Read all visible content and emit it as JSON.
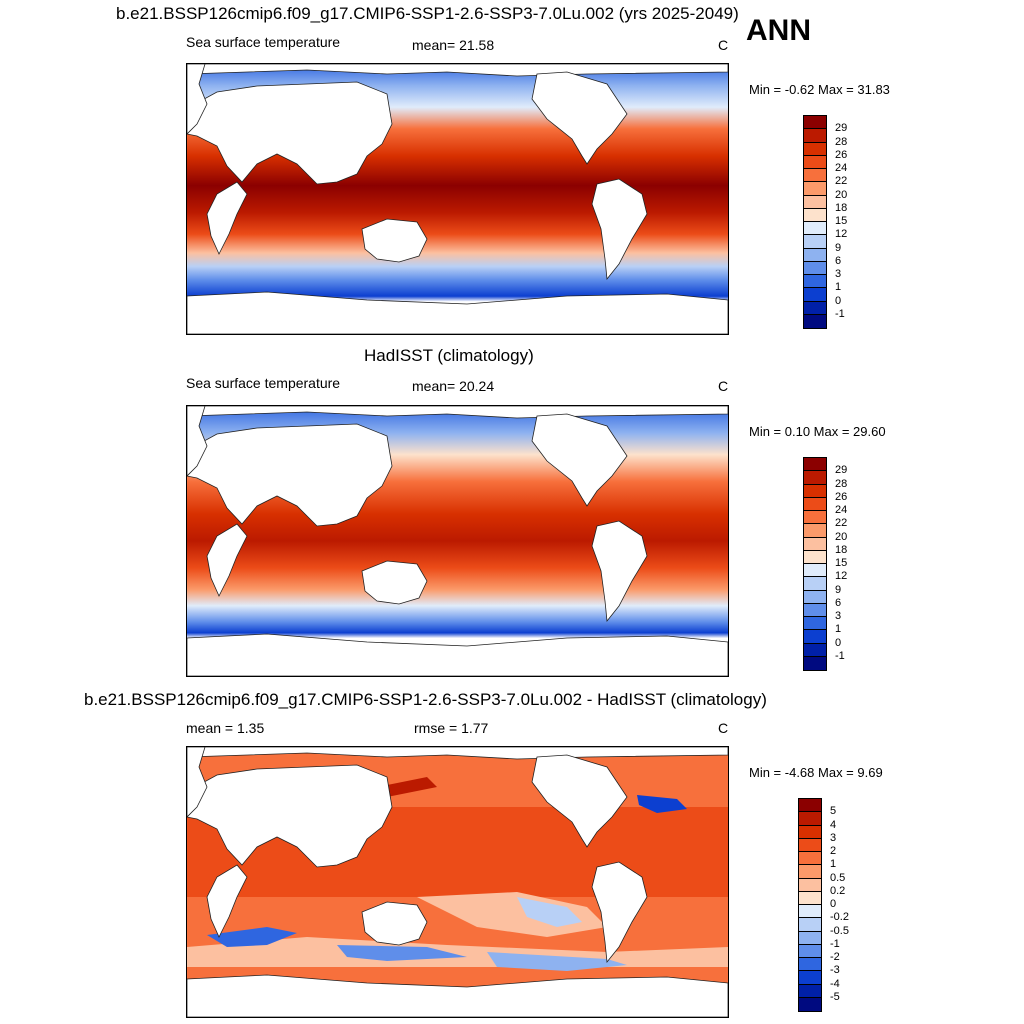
{
  "panels": [
    {
      "title": "b.e21.BSSP126cmip6.f09_g17.CMIP6-SSP1-2.6-SSP3-7.0Lu.002 (yrs 2025-2049)",
      "left_label": "Sea surface temperature",
      "center_label": "mean=  21.58",
      "units": "C",
      "minmax": "Min =  -0.62 Max =  31.83",
      "colorbar_labels": [
        "29",
        "28",
        "26",
        "24",
        "22",
        "20",
        "18",
        "15",
        "12",
        "9",
        "6",
        "3",
        "1",
        "0",
        "-1"
      ],
      "colorbar_colors": [
        "#8b0000",
        "#bb1a00",
        "#d83000",
        "#ec4c18",
        "#f7703c",
        "#fb9a6a",
        "#fcc0a0",
        "#fde2cc",
        "#e0ecfb",
        "#b8d0f6",
        "#8eb2f0",
        "#5f8eea",
        "#2f66e0",
        "#0c3fd0",
        "#0020a8",
        "#000a80"
      ]
    },
    {
      "title": "HadISST (climatology)",
      "left_label": "Sea surface temperature",
      "center_label": "mean=  20.24",
      "units": "C",
      "minmax": "Min =   0.10 Max =  29.60",
      "colorbar_labels": [
        "29",
        "28",
        "26",
        "24",
        "22",
        "20",
        "18",
        "15",
        "12",
        "9",
        "6",
        "3",
        "1",
        "0",
        "-1"
      ],
      "colorbar_colors": [
        "#8b0000",
        "#bb1a00",
        "#d83000",
        "#ec4c18",
        "#f7703c",
        "#fb9a6a",
        "#fcc0a0",
        "#fde2cc",
        "#e0ecfb",
        "#b8d0f6",
        "#8eb2f0",
        "#5f8eea",
        "#2f66e0",
        "#0c3fd0",
        "#0020a8",
        "#000a80"
      ]
    },
    {
      "title": "b.e21.BSSP126cmip6.f09_g17.CMIP6-SSP1-2.6-SSP3-7.0Lu.002 - HadISST (climatology)",
      "left_label": "mean =   1.35",
      "center_label": "rmse =   1.77",
      "units": "C",
      "minmax": "Min =  -4.68 Max =   9.69",
      "colorbar_labels": [
        "5",
        "4",
        "3",
        "2",
        "1",
        "0.5",
        "0.2",
        "0",
        "-0.2",
        "-0.5",
        "-1",
        "-2",
        "-3",
        "-4",
        "-5"
      ],
      "colorbar_colors": [
        "#8b0000",
        "#bb1a00",
        "#d83000",
        "#ec4c18",
        "#f7703c",
        "#fb9a6a",
        "#fcc0a0",
        "#fde2cc",
        "#e0ecfb",
        "#b8d0f6",
        "#8eb2f0",
        "#5f8eea",
        "#2f66e0",
        "#0c3fd0",
        "#0020a8",
        "#000a80"
      ]
    }
  ],
  "season": "ANN"
}
